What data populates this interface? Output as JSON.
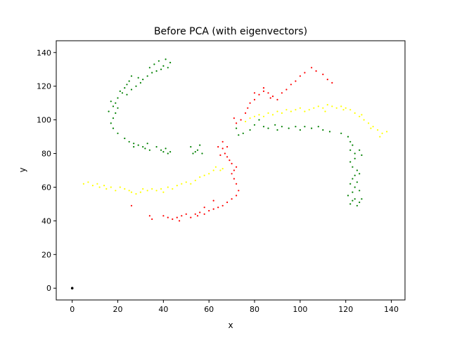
{
  "chart_data": {
    "type": "scatter",
    "title": "Before PCA (with eigenvectors)",
    "xlabel": "x",
    "ylabel": "y",
    "xlim": [
      -7,
      146
    ],
    "ylim": [
      -7,
      147
    ],
    "xticks": [
      0,
      20,
      40,
      60,
      80,
      100,
      120,
      140
    ],
    "yticks": [
      0,
      20,
      40,
      60,
      80,
      100,
      120,
      140
    ],
    "colors": {
      "green": "#008000",
      "yellow": "#ffff00",
      "red": "#ff0000",
      "black": "#000000"
    },
    "series": [
      {
        "color": "green",
        "points": [
          [
            38,
            135
          ],
          [
            41,
            136
          ],
          [
            43,
            134
          ],
          [
            40,
            132
          ],
          [
            36,
            133
          ],
          [
            34,
            131
          ],
          [
            37,
            129
          ],
          [
            39,
            130
          ],
          [
            42,
            131
          ],
          [
            35,
            128
          ],
          [
            33,
            126
          ],
          [
            31,
            124
          ],
          [
            29,
            125
          ],
          [
            30,
            122
          ],
          [
            28,
            120
          ],
          [
            26,
            126
          ],
          [
            25,
            123
          ],
          [
            24,
            121
          ],
          [
            26,
            118
          ],
          [
            23,
            119
          ],
          [
            22,
            116
          ],
          [
            24,
            115
          ],
          [
            21,
            117
          ],
          [
            20,
            113
          ],
          [
            19,
            110
          ],
          [
            17,
            111
          ],
          [
            18,
            108
          ],
          [
            20,
            107
          ],
          [
            16,
            105
          ],
          [
            19,
            104
          ],
          [
            18,
            101
          ],
          [
            17,
            98
          ],
          [
            18,
            95
          ],
          [
            20,
            92
          ],
          [
            23,
            89
          ],
          [
            25,
            87
          ],
          [
            27,
            86
          ],
          [
            27,
            84
          ],
          [
            29,
            85
          ],
          [
            31,
            84
          ],
          [
            33,
            86
          ],
          [
            32,
            83
          ],
          [
            34,
            82
          ],
          [
            37,
            84
          ],
          [
            39,
            82
          ],
          [
            40,
            81
          ],
          [
            41,
            83
          ],
          [
            43,
            81
          ],
          [
            42,
            80
          ],
          [
            52,
            84
          ],
          [
            53,
            80
          ],
          [
            55,
            82
          ],
          [
            57,
            80
          ],
          [
            56,
            85
          ],
          [
            54,
            81
          ],
          [
            72,
            95
          ],
          [
            73,
            91
          ],
          [
            75,
            92
          ],
          [
            78,
            94
          ],
          [
            80,
            97
          ],
          [
            82,
            100
          ],
          [
            84,
            96
          ],
          [
            86,
            95
          ],
          [
            89,
            97
          ],
          [
            90,
            94
          ],
          [
            92,
            96
          ],
          [
            95,
            95
          ],
          [
            98,
            96
          ],
          [
            100,
            94
          ],
          [
            102,
            96
          ],
          [
            105,
            95
          ],
          [
            108,
            96
          ],
          [
            110,
            94
          ],
          [
            113,
            93
          ],
          [
            118,
            92
          ],
          [
            121,
            90
          ],
          [
            122,
            87
          ],
          [
            123,
            85
          ],
          [
            122,
            82
          ],
          [
            124,
            80
          ],
          [
            126,
            82
          ],
          [
            127,
            79
          ],
          [
            124,
            77
          ],
          [
            122,
            75
          ],
          [
            123,
            72
          ],
          [
            125,
            70
          ],
          [
            124,
            67
          ],
          [
            123,
            65
          ],
          [
            122,
            62
          ],
          [
            124,
            60
          ],
          [
            123,
            57
          ],
          [
            121,
            55
          ],
          [
            124,
            53
          ],
          [
            122,
            50
          ],
          [
            125,
            49
          ],
          [
            126,
            51
          ],
          [
            127,
            53
          ],
          [
            123,
            52
          ],
          [
            126,
            58
          ],
          [
            125,
            63
          ],
          [
            126,
            68
          ]
        ]
      },
      {
        "color": "yellow",
        "points": [
          [
            5,
            62
          ],
          [
            7,
            63
          ],
          [
            9,
            61
          ],
          [
            11,
            62
          ],
          [
            12,
            60
          ],
          [
            14,
            61
          ],
          [
            15,
            59
          ],
          [
            17,
            60
          ],
          [
            19,
            58
          ],
          [
            21,
            60
          ],
          [
            23,
            59
          ],
          [
            25,
            58
          ],
          [
            26,
            57
          ],
          [
            28,
            56
          ],
          [
            30,
            57
          ],
          [
            31,
            59
          ],
          [
            33,
            58
          ],
          [
            35,
            59
          ],
          [
            37,
            58
          ],
          [
            39,
            59
          ],
          [
            40,
            57
          ],
          [
            42,
            60
          ],
          [
            44,
            59
          ],
          [
            46,
            61
          ],
          [
            48,
            62
          ],
          [
            50,
            63
          ],
          [
            52,
            62
          ],
          [
            54,
            64
          ],
          [
            56,
            66
          ],
          [
            58,
            67
          ],
          [
            60,
            68
          ],
          [
            62,
            70
          ],
          [
            63,
            72
          ],
          [
            65,
            70
          ],
          [
            66,
            71
          ],
          [
            76,
            99
          ],
          [
            78,
            101
          ],
          [
            80,
            102
          ],
          [
            82,
            103
          ],
          [
            84,
            102
          ],
          [
            86,
            104
          ],
          [
            88,
            103
          ],
          [
            90,
            105
          ],
          [
            92,
            104
          ],
          [
            94,
            106
          ],
          [
            96,
            105
          ],
          [
            98,
            106
          ],
          [
            100,
            107
          ],
          [
            102,
            105
          ],
          [
            104,
            106
          ],
          [
            106,
            107
          ],
          [
            108,
            108
          ],
          [
            110,
            107
          ],
          [
            112,
            109
          ],
          [
            114,
            108
          ],
          [
            116,
            107
          ],
          [
            118,
            108
          ],
          [
            120,
            107
          ],
          [
            122,
            106
          ],
          [
            124,
            104
          ],
          [
            126,
            102
          ],
          [
            128,
            100
          ],
          [
            130,
            98
          ],
          [
            132,
            96
          ],
          [
            134,
            94
          ],
          [
            136,
            92
          ],
          [
            138,
            93
          ],
          [
            135,
            90
          ],
          [
            131,
            95
          ],
          [
            127,
            103
          ],
          [
            119,
            106
          ],
          [
            111,
            105
          ]
        ]
      },
      {
        "color": "red",
        "points": [
          [
            34,
            43
          ],
          [
            35,
            41
          ],
          [
            40,
            43
          ],
          [
            42,
            42
          ],
          [
            44,
            41
          ],
          [
            46,
            42
          ],
          [
            48,
            43
          ],
          [
            50,
            44
          ],
          [
            52,
            42
          ],
          [
            54,
            44
          ],
          [
            56,
            45
          ],
          [
            58,
            44
          ],
          [
            60,
            46
          ],
          [
            62,
            47
          ],
          [
            64,
            48
          ],
          [
            66,
            49
          ],
          [
            68,
            51
          ],
          [
            70,
            53
          ],
          [
            72,
            55
          ],
          [
            73,
            58
          ],
          [
            72,
            62
          ],
          [
            71,
            65
          ],
          [
            70,
            68
          ],
          [
            71,
            70
          ],
          [
            72,
            72
          ],
          [
            70,
            74
          ],
          [
            69,
            76
          ],
          [
            68,
            78
          ],
          [
            67,
            80
          ],
          [
            66,
            83
          ],
          [
            64,
            84
          ],
          [
            66,
            87
          ],
          [
            68,
            84
          ],
          [
            65,
            79
          ],
          [
            71,
            101
          ],
          [
            72,
            98
          ],
          [
            74,
            100
          ],
          [
            76,
            104
          ],
          [
            77,
            107
          ],
          [
            78,
            110
          ],
          [
            80,
            112
          ],
          [
            82,
            115
          ],
          [
            84,
            117
          ],
          [
            86,
            116
          ],
          [
            88,
            114
          ],
          [
            90,
            112
          ],
          [
            92,
            116
          ],
          [
            94,
            118
          ],
          [
            96,
            121
          ],
          [
            98,
            123
          ],
          [
            100,
            126
          ],
          [
            102,
            128
          ],
          [
            105,
            131
          ],
          [
            107,
            129
          ],
          [
            110,
            127
          ],
          [
            112,
            124
          ],
          [
            114,
            122
          ],
          [
            80,
            116
          ],
          [
            84,
            119
          ],
          [
            87,
            113
          ],
          [
            62,
            52
          ],
          [
            58,
            48
          ],
          [
            55,
            43
          ],
          [
            47,
            40
          ],
          [
            26,
            49
          ]
        ]
      },
      {
        "color": "black",
        "points": [
          [
            0,
            0
          ]
        ]
      }
    ]
  }
}
